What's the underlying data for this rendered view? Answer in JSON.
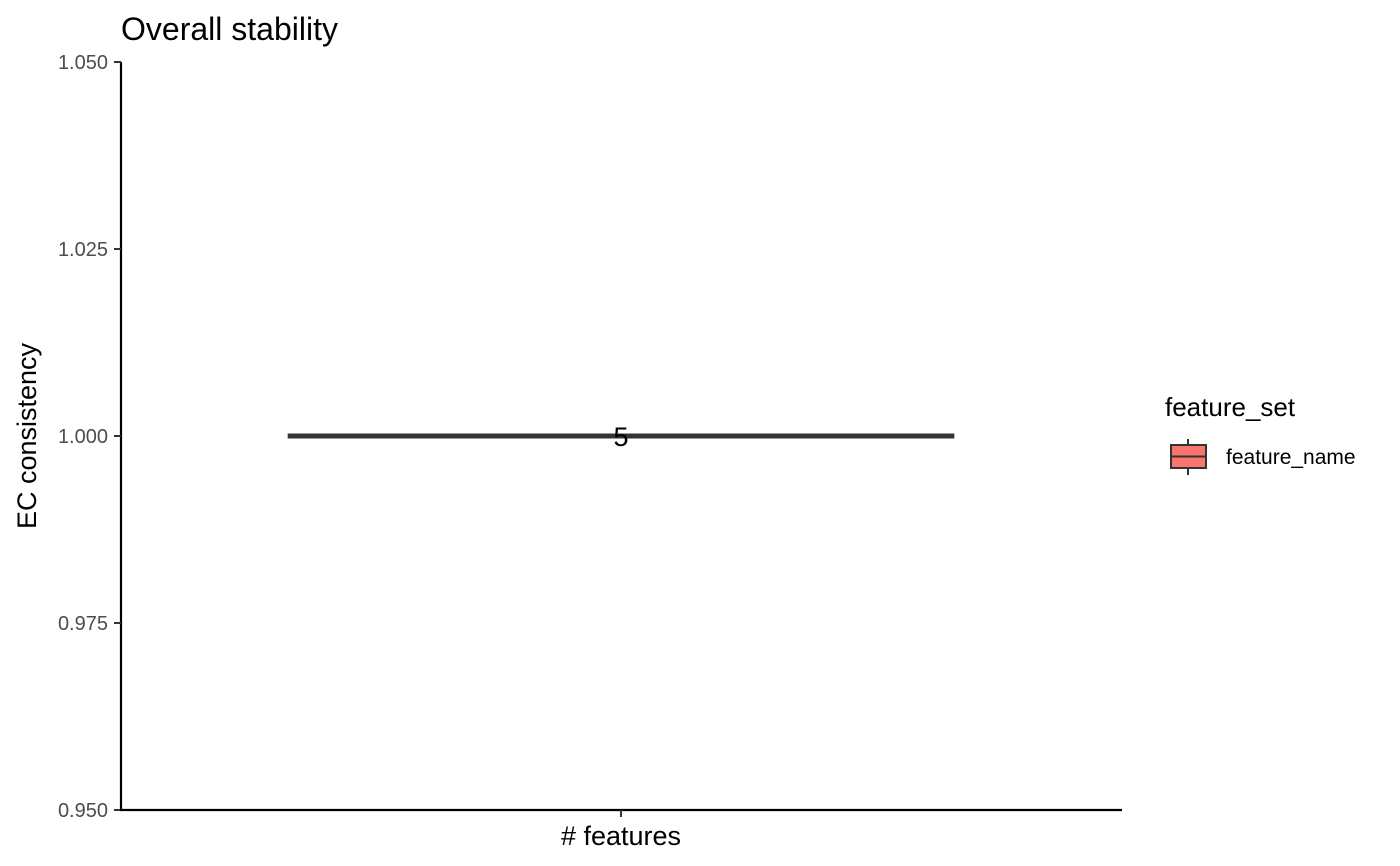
{
  "chart_data": {
    "type": "box",
    "title": "Overall stability",
    "xlabel": "",
    "ylabel": "EC consistency",
    "categories": [
      "# features"
    ],
    "ylim": [
      0.95,
      1.05
    ],
    "yticks": [
      0.95,
      0.975,
      1.0,
      1.025,
      1.05
    ],
    "ytick_labels": [
      "0.950",
      "0.975",
      "1.000",
      "1.025",
      "1.050"
    ],
    "series": [
      {
        "name": "feature_name",
        "color": "#f8766d",
        "boxes": [
          {
            "category": "# features",
            "min": 1.0,
            "q1": 1.0,
            "median": 1.0,
            "q3": 1.0,
            "max": 1.0,
            "label": "5"
          }
        ]
      }
    ],
    "legend": {
      "title": "feature_set",
      "position": "right"
    },
    "grid": false
  }
}
